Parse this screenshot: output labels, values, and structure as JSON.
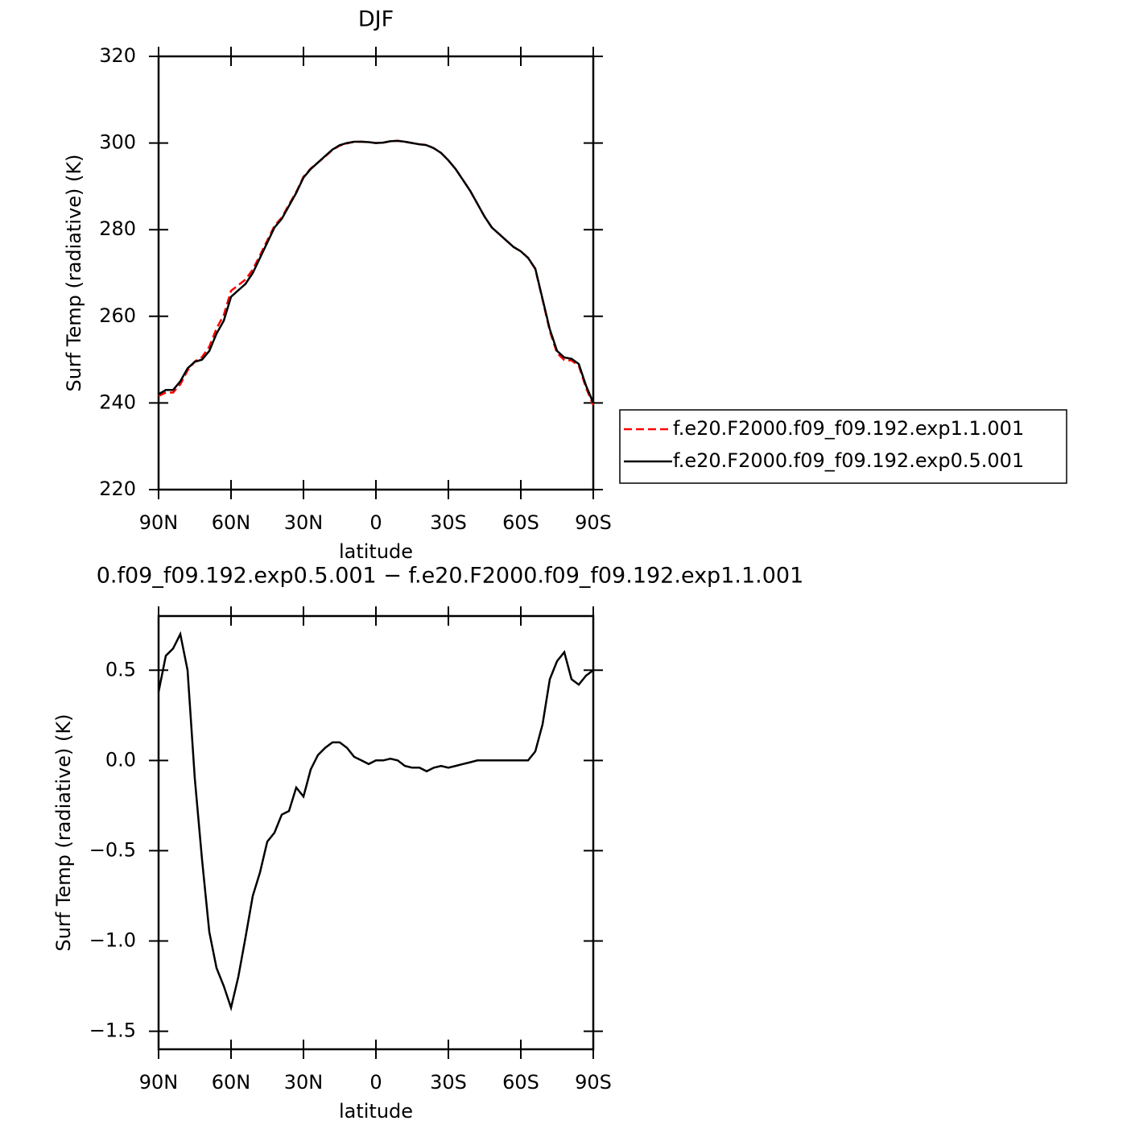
{
  "chart_data": [
    {
      "type": "line",
      "title": "DJF",
      "x_label": "latitude",
      "y_label": "Surf Temp (radiative) (K)",
      "x": [
        90,
        87,
        84,
        81,
        78,
        75,
        72,
        69,
        66,
        63,
        60,
        57,
        54,
        51,
        48,
        45,
        42,
        39,
        36,
        33,
        30,
        27,
        24,
        21,
        18,
        15,
        12,
        9,
        6,
        3,
        0,
        -3,
        -6,
        -9,
        -12,
        -15,
        -18,
        -21,
        -24,
        -27,
        -30,
        -33,
        -36,
        -39,
        -42,
        -45,
        -48,
        -51,
        -54,
        -57,
        -60,
        -63,
        -66,
        -69,
        -72,
        -75,
        -78,
        -81,
        -84,
        -87,
        -90
      ],
      "series": [
        {
          "name": "f.e20.F2000.f09_f09.192.exp1.1.001",
          "color": "#ff0000",
          "line_style": "dashed",
          "values": [
            241.6,
            242.4,
            242.4,
            244.3,
            247.5,
            249.6,
            250.6,
            253,
            257.2,
            260.3,
            265.9,
            267.2,
            268.5,
            270.8,
            274.1,
            277.5,
            280.9,
            282.8,
            285.8,
            288.7,
            292.2,
            294.1,
            295.5,
            296.9,
            298.4,
            299.4,
            299.9,
            300.3,
            300.3,
            300.2,
            300,
            300.1,
            300.4,
            300.5,
            300.3,
            300,
            299.7,
            299.6,
            298.8,
            297.7,
            296,
            294,
            291.5,
            289,
            286,
            283,
            280.5,
            279,
            277.5,
            276,
            275,
            273.5,
            270.9,
            263.8,
            256.6,
            251.5,
            249.9,
            249.8,
            248.6,
            243.5,
            239.5
          ]
        },
        {
          "name": "f.e20.F2000.f09_f09.192.exp0.5.001",
          "color": "#000000",
          "line_style": "solid",
          "values": [
            242,
            243,
            243,
            245,
            248,
            249.5,
            250,
            252,
            256,
            259,
            264.5,
            266,
            267.5,
            270,
            273.5,
            277,
            280.5,
            282.5,
            285.5,
            288.5,
            292,
            294,
            295.5,
            297,
            298.5,
            299.5,
            300,
            300.3,
            300.3,
            300.2,
            300,
            300.1,
            300.4,
            300.5,
            300.3,
            300,
            299.7,
            299.5,
            298.8,
            297.7,
            296,
            294,
            291.5,
            289,
            286,
            283,
            280.5,
            279,
            277.5,
            276,
            275,
            273.5,
            271,
            264,
            257,
            252,
            250.5,
            250.2,
            249,
            244,
            240
          ]
        }
      ],
      "xlim": [
        90,
        -90
      ],
      "xticks": [
        {
          "value": 90,
          "label": "90N"
        },
        {
          "value": 60,
          "label": "60N"
        },
        {
          "value": 30,
          "label": "30N"
        },
        0,
        {
          "value": -30,
          "label": "30S"
        },
        {
          "value": -60,
          "label": "60S"
        },
        {
          "value": -90,
          "label": "90S"
        }
      ],
      "ylim": [
        220,
        320
      ],
      "yticks": [
        220,
        240,
        260,
        280,
        300,
        320
      ],
      "legend": "right"
    },
    {
      "type": "line",
      "title": "0.f09_f09.192.exp0.5.001 − f.e20.F2000.f09_f09.192.exp1.1.001",
      "x_label": "latitude",
      "y_label": "Surf Temp (radiative) (K)",
      "x": [
        90,
        87,
        84,
        81,
        78,
        75,
        72,
        69,
        66,
        63,
        60,
        57,
        54,
        51,
        48,
        45,
        42,
        39,
        36,
        33,
        30,
        27,
        24,
        21,
        18,
        15,
        12,
        9,
        6,
        3,
        0,
        -3,
        -6,
        -9,
        -12,
        -15,
        -18,
        -21,
        -24,
        -27,
        -30,
        -33,
        -36,
        -39,
        -42,
        -45,
        -48,
        -51,
        -54,
        -57,
        -60,
        -63,
        -66,
        -69,
        -72,
        -75,
        -78,
        -81,
        -84,
        -87,
        -90
      ],
      "series": [
        {
          "color": "#000000",
          "line_style": "solid",
          "values": [
            0.38,
            0.58,
            0.62,
            0.7,
            0.5,
            -0.1,
            -0.55,
            -0.95,
            -1.15,
            -1.25,
            -1.37,
            -1.2,
            -0.98,
            -0.75,
            -0.62,
            -0.45,
            -0.4,
            -0.3,
            -0.28,
            -0.15,
            -0.2,
            -0.05,
            0.03,
            0.07,
            0.1,
            0.1,
            0.07,
            0.02,
            0,
            -0.02,
            0,
            0,
            0.01,
            0,
            -0.03,
            -0.04,
            -0.04,
            -0.06,
            -0.04,
            -0.03,
            -0.04,
            -0.03,
            -0.02,
            -0.01,
            0,
            0,
            0,
            0,
            0,
            0,
            0,
            0,
            0.05,
            0.2,
            0.45,
            0.55,
            0.6,
            0.45,
            0.42,
            0.47,
            0.5
          ]
        }
      ],
      "xlim": [
        90,
        -90
      ],
      "xticks": [
        {
          "value": 90,
          "label": "90N"
        },
        {
          "value": 60,
          "label": "60N"
        },
        {
          "value": 30,
          "label": "30N"
        },
        0,
        {
          "value": -30,
          "label": "30S"
        },
        {
          "value": -60,
          "label": "60S"
        },
        {
          "value": -90,
          "label": "90S"
        }
      ],
      "ylim": [
        -1.6,
        0.8
      ],
      "yticks": [
        {
          "value": -1.5,
          "label": "−1.5"
        },
        {
          "value": -1.0,
          "label": "−1.0"
        },
        {
          "value": -0.5,
          "label": "−0.5"
        },
        {
          "value": 0,
          "label": "0.0"
        },
        0.5
      ]
    }
  ]
}
